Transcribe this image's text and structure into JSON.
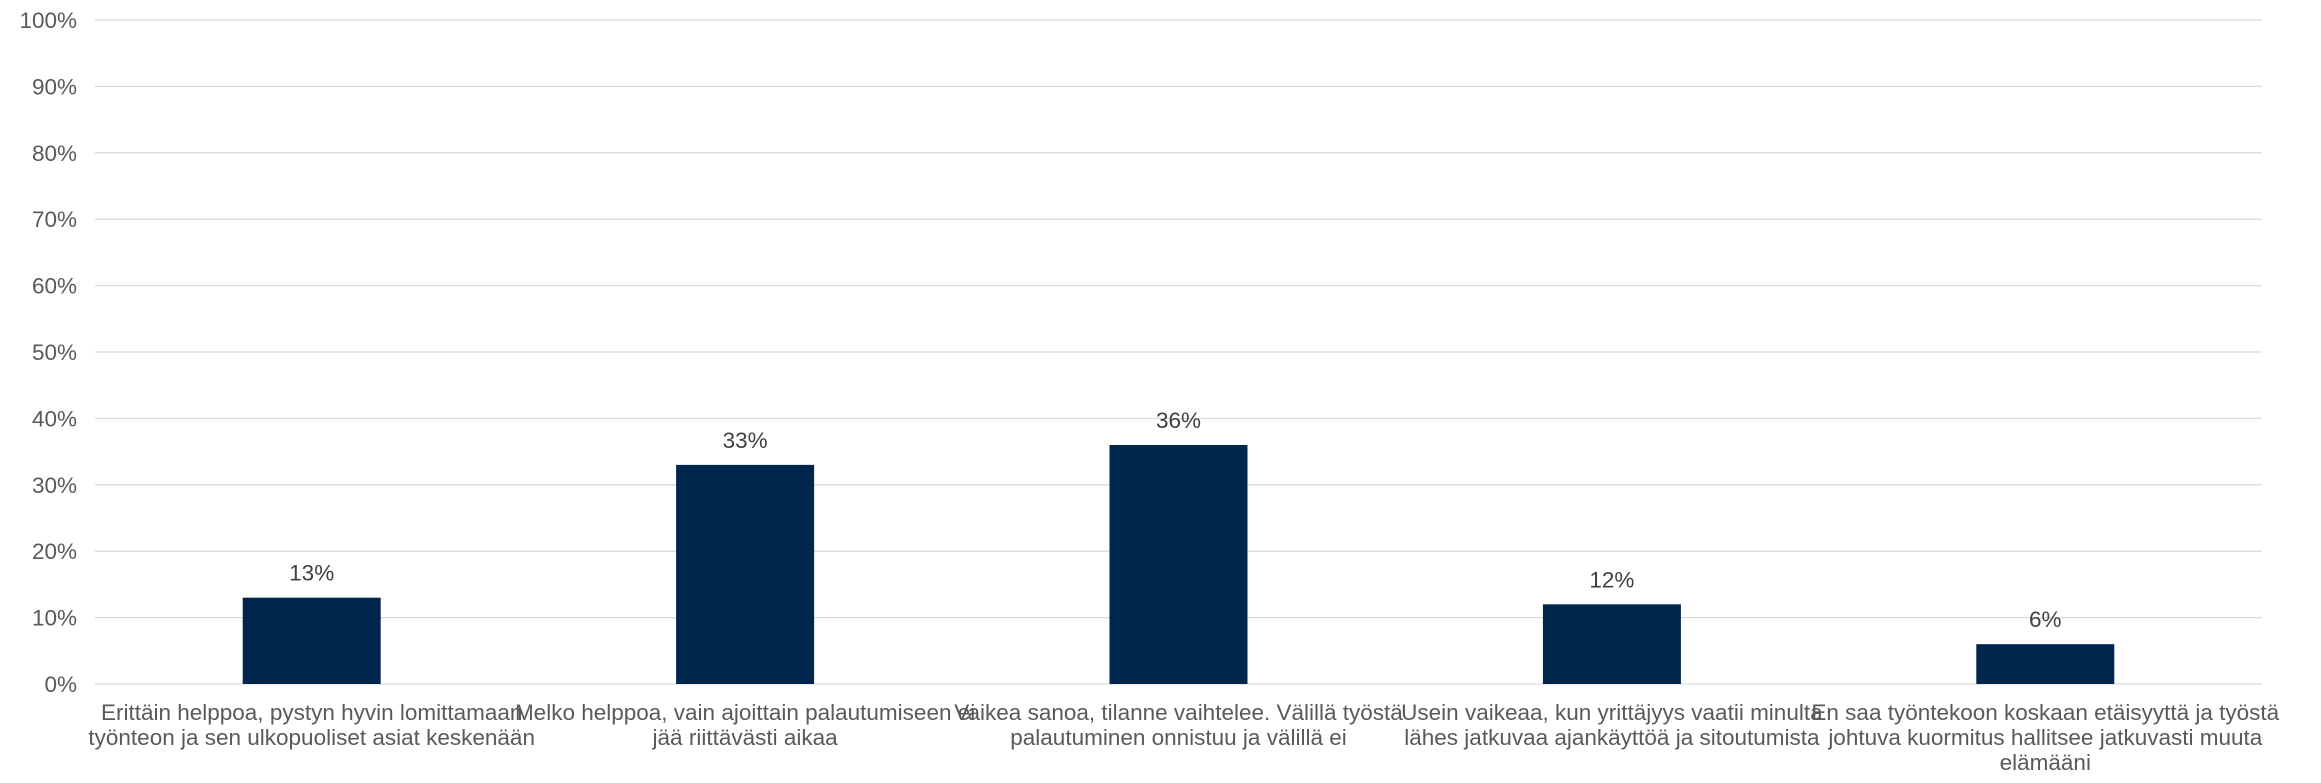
{
  "chart_data": {
    "type": "bar",
    "title": "",
    "xlabel": "",
    "ylabel": "",
    "ylim": [
      0,
      100
    ],
    "y_tick_labels": [
      "0%",
      "10%",
      "20%",
      "30%",
      "40%",
      "50%",
      "60%",
      "70%",
      "80%",
      "90%",
      "100%"
    ],
    "grid": true,
    "legend": "none",
    "categories": [
      "Erittäin helppoa, pystyn hyvin lomittamaan työnteon ja sen ulkopuoliset asiat keskenään",
      "Melko helppoa, vain ajoittain palautumiseen ei jää riittävästi aikaa",
      "Vaikea sanoa, tilanne vaihtelee. Välillä työstä palautuminen onnistuu ja välillä ei",
      "Usein vaikeaa, kun yrittäjyys vaatii minulta lähes jatkuvaa ajankäyttöä ja sitoutumista",
      "En saa työntekoon koskaan etäisyyttä ja työstä johtuva kuormitus hallitsee jatkuvasti muuta elämääni"
    ],
    "values": [
      13,
      33,
      36,
      12,
      6
    ],
    "data_labels": [
      "13%",
      "33%",
      "36%",
      "12%",
      "6%"
    ],
    "colors": {
      "bar": "#00264d",
      "grid": "#d9d9d9",
      "text": "#595959",
      "data_label": "#404040"
    }
  }
}
